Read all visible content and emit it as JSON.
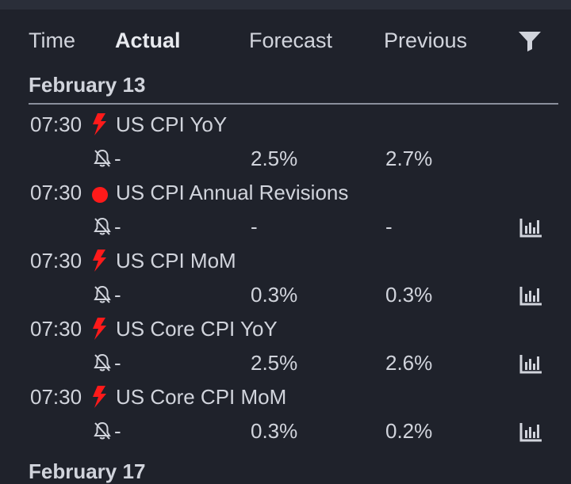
{
  "columns": {
    "time": "Time",
    "actual": "Actual",
    "forecast": "Forecast",
    "previous": "Previous"
  },
  "filter_icon": "filter-icon",
  "groups": [
    {
      "date": "February 13",
      "events": [
        {
          "time": "07:30",
          "importance": "high",
          "name": "US CPI YoY",
          "actual": "-",
          "forecast": "2.5%",
          "previous": "2.7%",
          "has_chart": false
        },
        {
          "time": "07:30",
          "importance": "holiday",
          "name": "US CPI Annual Revisions",
          "actual": "-",
          "forecast": "-",
          "previous": "-",
          "has_chart": true
        },
        {
          "time": "07:30",
          "importance": "high",
          "name": "US CPI MoM",
          "actual": "-",
          "forecast": "0.3%",
          "previous": "0.3%",
          "has_chart": true
        },
        {
          "time": "07:30",
          "importance": "high",
          "name": "US Core CPI YoY",
          "actual": "-",
          "forecast": "2.5%",
          "previous": "2.6%",
          "has_chart": true
        },
        {
          "time": "07:30",
          "importance": "high",
          "name": "US Core CPI MoM",
          "actual": "-",
          "forecast": "0.3%",
          "previous": "0.2%",
          "has_chart": true
        }
      ]
    },
    {
      "date": "February 17"
    }
  ],
  "colors": {
    "background": "#1f222b",
    "text": "#d1d4dc",
    "importance_high": "#ff1a1a"
  }
}
